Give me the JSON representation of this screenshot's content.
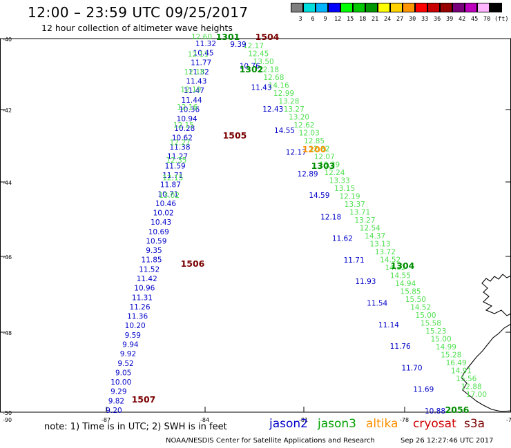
{
  "header": {
    "title": "12:00 – 23:59 UTC 09/25/2017",
    "subtitle": "12 hour collection of altimeter wave heights"
  },
  "color_scale": {
    "unit": "(ft)",
    "bins": [
      {
        "color": "#7f7f7f",
        "label": "3"
      },
      {
        "color": "#00dcdc",
        "label": "6"
      },
      {
        "color": "#00b4ff",
        "label": "9"
      },
      {
        "color": "#0000ff",
        "label": "12"
      },
      {
        "color": "#00ff00",
        "label": "15"
      },
      {
        "color": "#00c800",
        "label": "18"
      },
      {
        "color": "#009600",
        "label": "21"
      },
      {
        "color": "#ffff00",
        "label": "24"
      },
      {
        "color": "#ffd200",
        "label": "27"
      },
      {
        "color": "#ff9600",
        "label": "30"
      },
      {
        "color": "#ff0000",
        "label": "33"
      },
      {
        "color": "#c80000",
        "label": "36"
      },
      {
        "color": "#960000",
        "label": "39"
      },
      {
        "color": "#780078",
        "label": "42"
      },
      {
        "color": "#be00be",
        "label": "45"
      },
      {
        "color": "#ffb4ff",
        "label": "70"
      },
      {
        "color": "#000000",
        "label": ""
      }
    ]
  },
  "map": {
    "lat_labels": [
      "40",
      "42",
      "44",
      "46",
      "48",
      "50"
    ],
    "lat_labels_neg": [
      "-40",
      "-42",
      "-44",
      "-46",
      "-48",
      "-50"
    ],
    "lon_labels": [
      "-87",
      "-84",
      "-81",
      "-78",
      "-75"
    ],
    "corner_label": "-90",
    "colors": {
      "jason2": "#0000c8",
      "jason3_light": "#4fe04f",
      "jason3_dark": "#008c00",
      "altika": "#ff9000",
      "cryosat": "#7a0000",
      "coast": "#000000"
    },
    "tracks": [
      {
        "id": "jason2-west",
        "color": "#0000c8",
        "points": [
          [
            "11.32",
            0
          ],
          [
            "10.45",
            0
          ],
          [
            "11.77",
            0
          ],
          [
            "11.32",
            0
          ],
          [
            "11.43",
            0
          ],
          [
            "11.47",
            0
          ],
          [
            "11.44",
            0
          ],
          [
            "10.36",
            0
          ],
          [
            "10.94",
            0
          ],
          [
            "10.28",
            0
          ],
          [
            "10.62",
            0
          ],
          [
            "11.38",
            0
          ],
          [
            "11.27",
            0
          ],
          [
            "11.59",
            0
          ],
          [
            "11.71",
            0
          ],
          [
            "11.87",
            0
          ],
          [
            "10.71",
            0
          ],
          [
            "10.46",
            0
          ],
          [
            "10.02",
            0
          ],
          [
            "10.43",
            0
          ],
          [
            "10.69",
            0
          ],
          [
            "10.59",
            0
          ],
          [
            "9.35",
            0
          ],
          [
            "11.85",
            0
          ],
          [
            "11.52",
            0
          ],
          [
            "11.42",
            0
          ],
          [
            "10.96",
            0
          ],
          [
            "11.31",
            0
          ],
          [
            "11.26",
            0
          ],
          [
            "11.36",
            0
          ],
          [
            "10.20",
            0
          ],
          [
            "9.59",
            0
          ],
          [
            "9.94",
            0
          ],
          [
            "9.92",
            0
          ],
          [
            "9.52",
            0
          ],
          [
            "9.05",
            0
          ],
          [
            "10.00",
            0
          ],
          [
            "9.29",
            0
          ],
          [
            "9.82",
            0
          ],
          [
            "9.20",
            0
          ]
        ]
      },
      {
        "id": "jason3-west",
        "color": "#4fe04f",
        "values": [
          "12.60",
          "12.11",
          "12.18",
          "12.19",
          "12.16",
          "12.15",
          "12.27",
          "12.35",
          "12.15",
          "13.02"
        ]
      },
      {
        "id": "jason3-east",
        "color": "#4fe04f",
        "values": [
          "12.17",
          "12.45",
          "13.50",
          "12.18",
          "12.68",
          "14.16",
          "12.99",
          "13.28",
          "13.27",
          "13.20",
          "12.62",
          "12.03",
          "12.85",
          "12.82",
          "12.07",
          "13.39",
          "12.24",
          "13.33",
          "13.15",
          "12.19",
          "13.37",
          "13.71",
          "13.27",
          "12.54",
          "14.37",
          "13.13",
          "13.72",
          "14.52",
          "14.32",
          "14.55",
          "14.94",
          "15.85",
          "15.50",
          "14.52",
          "15.00",
          "15.58",
          "15.23",
          "15.00",
          "14.99",
          "15.28",
          "16.49",
          "14.91",
          "15.56",
          "12.88",
          "17.00"
        ]
      },
      {
        "id": "jason2-east",
        "color": "#0000c8",
        "values": [
          "9.39",
          "10.76",
          "11.43",
          "12.43",
          "14.55",
          "12.17",
          "12.89",
          "14.59",
          "12.18",
          "11.62",
          "11.71",
          "11.93",
          "11.54",
          "11.14",
          "11.76",
          "11.70",
          "11.69",
          "10.88"
        ]
      }
    ],
    "pass_labels": [
      {
        "text": "1301",
        "color": "#008c00"
      },
      {
        "text": "1504",
        "color": "#7a0000"
      },
      {
        "text": "1302",
        "color": "#008c00"
      },
      {
        "text": "1505",
        "color": "#7a0000"
      },
      {
        "text": "1200",
        "color": "#ff9000"
      },
      {
        "text": "1303",
        "color": "#008c00"
      },
      {
        "text": "1506",
        "color": "#7a0000"
      },
      {
        "text": "1304",
        "color": "#008c00"
      },
      {
        "text": "1507",
        "color": "#7a0000"
      },
      {
        "text": "2056",
        "color": "#008c00"
      }
    ]
  },
  "note": "note: 1) Time is in UTC; 2) SWH is in feet",
  "legend": [
    {
      "name": "jason2",
      "color": "#0000c8"
    },
    {
      "name": "jason3",
      "color": "#00a000"
    },
    {
      "name": "altika",
      "color": "#ff9000"
    },
    {
      "name": "cryosat",
      "color": "#d00000"
    },
    {
      "name": "s3a",
      "color": "#7a0000"
    }
  ],
  "footer": {
    "agency": "NOAA/NESDIS Center for Satellite Applications and Research",
    "generated": "Sep 26 12:27:46 UTC 2017"
  }
}
